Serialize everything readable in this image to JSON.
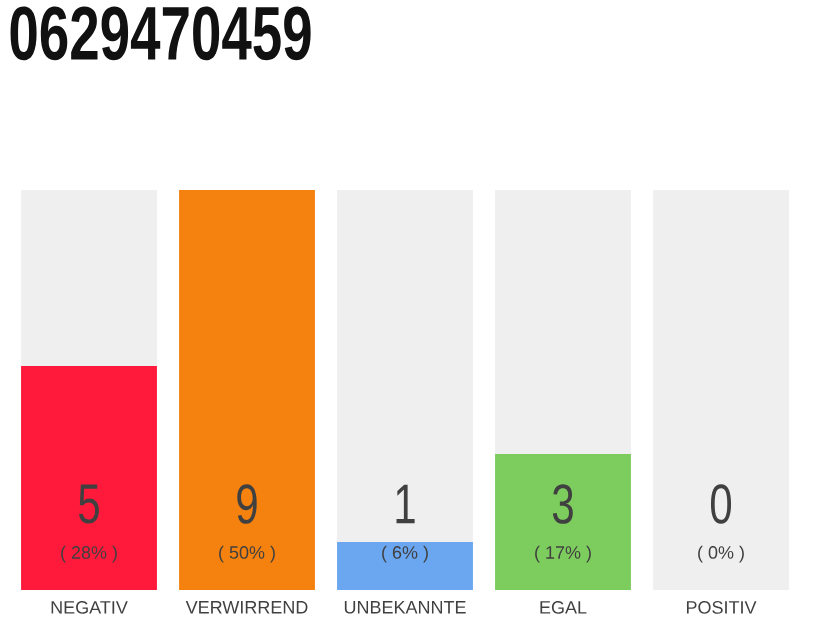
{
  "chart_data": {
    "type": "bar",
    "title": "0629470459",
    "categories": [
      "NEGATIV",
      "VERWIRREND",
      "UNBEKANNTE",
      "EGAL",
      "POSITIV"
    ],
    "values": [
      28,
      50,
      6,
      17,
      0
    ],
    "colors": [
      "#ff1a3c",
      "#f5820f",
      "#6aa7f0",
      "#7dcc5e",
      "#bdbdbd"
    ],
    "value_labels": [
      "( 28% )",
      "( 50% )",
      "( 6% )",
      "( 17% )",
      "( 0% )"
    ],
    "annotations": [
      "5",
      "9",
      "1",
      "3",
      "0"
    ],
    "bands": [
      {
        "axis": "x",
        "from": "NEGATIV",
        "to": "NEGATIV",
        "color": "#efefef"
      },
      {
        "axis": "x",
        "from": "UNBEKANNTE",
        "to": "UNBEKANNTE",
        "color": "#efefef"
      },
      {
        "axis": "x",
        "from": "EGAL",
        "to": "EGAL",
        "color": "#efefef"
      },
      {
        "axis": "x",
        "from": "POSITIV",
        "to": "POSITIV",
        "color": "#efefef"
      }
    ],
    "tick_labels": "x"
  }
}
